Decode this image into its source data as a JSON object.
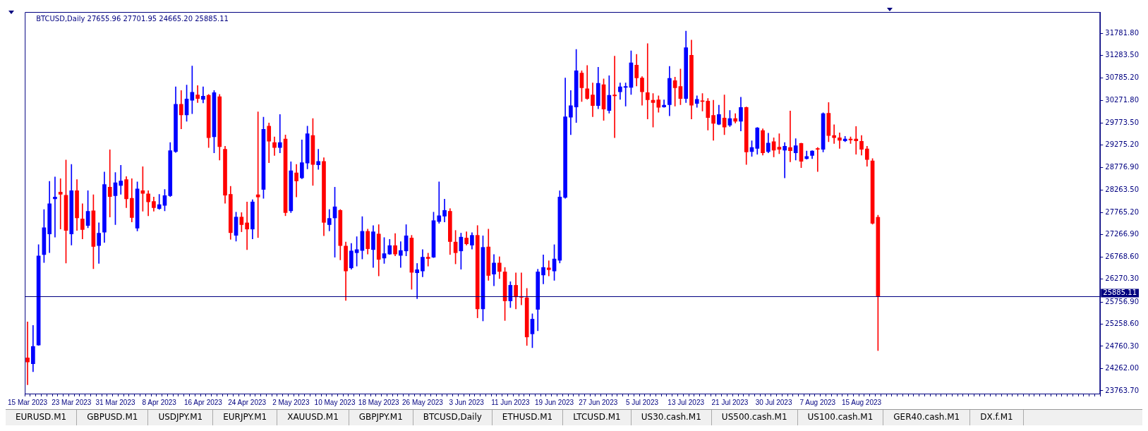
{
  "chart_data": {
    "type": "candlestick",
    "title": "BTCUSD,Daily 27655.96 27701.95 24665.20 25885.11",
    "categories": [
      "15 Mar 2023",
      null,
      null,
      null,
      null,
      null,
      null,
      null,
      "23 Mar 2023",
      null,
      null,
      null,
      null,
      null,
      null,
      null,
      "31 Mar 2023",
      null,
      null,
      null,
      null,
      null,
      null,
      null,
      "8 Apr 2023",
      null,
      null,
      null,
      null,
      null,
      null,
      null,
      "16 Apr 2023",
      null,
      null,
      null,
      null,
      null,
      null,
      null,
      "24 Apr 2023",
      null,
      null,
      null,
      null,
      null,
      null,
      null,
      "2 May 2023",
      null,
      null,
      null,
      null,
      null,
      null,
      null,
      "10 May 2023",
      null,
      null,
      null,
      null,
      null,
      null,
      null,
      "18 May 2023",
      null,
      null,
      null,
      null,
      null,
      null,
      null,
      "26 May 2023",
      null,
      null,
      null,
      null,
      null,
      null,
      null,
      "3 Jun 2023",
      null,
      null,
      null,
      null,
      null,
      null,
      null,
      "11 Jun 2023",
      null,
      null,
      null,
      null,
      null,
      null,
      null,
      "19 Jun 2023",
      null,
      null,
      null,
      null,
      null,
      null,
      null,
      "27 Jun 2023",
      null,
      null,
      null,
      null,
      null,
      null,
      null,
      "5 Jul 2023",
      null,
      null,
      null,
      null,
      null,
      null,
      null,
      "13 Jul 2023",
      null,
      null,
      null,
      null,
      null,
      null,
      null,
      "21 Jul 2023",
      null,
      null,
      null,
      null,
      null,
      null,
      null,
      "30 Jul 2023",
      null,
      null,
      null,
      null,
      null,
      null,
      null,
      "7 Aug 2023",
      null,
      null,
      null,
      null,
      null,
      null,
      null,
      "15 Aug 2023",
      null,
      null,
      null,
      null,
      null,
      null,
      null,
      null,
      null,
      null,
      null,
      null,
      null,
      null,
      null,
      null,
      null,
      null,
      null,
      null,
      null,
      null,
      null,
      null,
      null,
      null,
      null,
      null,
      null,
      null,
      null,
      null,
      null,
      null,
      null,
      null,
      null,
      null,
      null,
      null,
      null,
      null,
      null
    ],
    "ohlc": [
      [
        24500,
        25310,
        23900,
        24410
      ],
      [
        24370,
        25230,
        24190,
        24760
      ],
      [
        24790,
        27040,
        24780,
        26790
      ],
      [
        26820,
        27830,
        26640,
        27420
      ],
      [
        27280,
        28460,
        26860,
        27960
      ],
      [
        28070,
        28560,
        27210,
        28110
      ],
      [
        28220,
        28520,
        27390,
        28170
      ],
      [
        28150,
        28940,
        26630,
        27360
      ],
      [
        27280,
        28840,
        27030,
        28250
      ],
      [
        28250,
        28500,
        27360,
        27640
      ],
      [
        27620,
        27960,
        27170,
        27380
      ],
      [
        27470,
        28250,
        27420,
        27790
      ],
      [
        27800,
        28160,
        26500,
        27000
      ],
      [
        27020,
        27530,
        26620,
        27300
      ],
      [
        27320,
        28670,
        27090,
        28390
      ],
      [
        28330,
        29170,
        27660,
        28120
      ],
      [
        28140,
        28660,
        27490,
        28430
      ],
      [
        28370,
        28820,
        28170,
        28470
      ],
      [
        28500,
        28570,
        27870,
        28070
      ],
      [
        28080,
        28520,
        27550,
        27650
      ],
      [
        27410,
        28450,
        27350,
        28290
      ],
      [
        28250,
        28790,
        27790,
        28190
      ],
      [
        28180,
        28250,
        27690,
        28000
      ],
      [
        28010,
        28110,
        27790,
        27870
      ],
      [
        27850,
        28170,
        27830,
        27940
      ],
      [
        27920,
        28280,
        27800,
        28140
      ],
      [
        28140,
        29330,
        28120,
        29150
      ],
      [
        29130,
        30580,
        29110,
        30190
      ],
      [
        30190,
        30500,
        29640,
        29950
      ],
      [
        29950,
        30620,
        29810,
        30310
      ],
      [
        30280,
        31050,
        29980,
        30460
      ],
      [
        30400,
        30610,
        30230,
        30320
      ],
      [
        30300,
        30580,
        30220,
        30370
      ],
      [
        30390,
        30410,
        29220,
        29440
      ],
      [
        29460,
        30500,
        29100,
        30450
      ],
      [
        30360,
        30410,
        28940,
        29240
      ],
      [
        29180,
        29250,
        27970,
        28150
      ],
      [
        28170,
        28350,
        27160,
        27310
      ],
      [
        27250,
        27770,
        27120,
        27660
      ],
      [
        27660,
        27760,
        27330,
        27490
      ],
      [
        27530,
        28000,
        26930,
        27390
      ],
      [
        27390,
        28050,
        27170,
        28000
      ],
      [
        28160,
        30020,
        27200,
        28110
      ],
      [
        28280,
        29900,
        28080,
        29630
      ],
      [
        29700,
        29770,
        28880,
        29360
      ],
      [
        29330,
        29460,
        29040,
        29220
      ],
      [
        29220,
        29960,
        29100,
        29330
      ],
      [
        29410,
        29500,
        27690,
        27760
      ],
      [
        27800,
        28900,
        27760,
        28700
      ],
      [
        28650,
        28840,
        28110,
        28470
      ],
      [
        28540,
        29390,
        28520,
        28880
      ],
      [
        28870,
        29700,
        28740,
        29530
      ],
      [
        29490,
        29870,
        28370,
        28840
      ],
      [
        28830,
        29180,
        28730,
        28910
      ],
      [
        28910,
        28990,
        27240,
        27540
      ],
      [
        27490,
        27830,
        27350,
        27630
      ],
      [
        27640,
        28330,
        26760,
        27890
      ],
      [
        27810,
        27830,
        26700,
        27020
      ],
      [
        27010,
        27100,
        25790,
        26450
      ],
      [
        26520,
        27070,
        26490,
        26900
      ],
      [
        26860,
        27220,
        26560,
        26930
      ],
      [
        26910,
        27670,
        26720,
        27340
      ],
      [
        27340,
        27390,
        26830,
        26950
      ],
      [
        26930,
        27470,
        26530,
        27330
      ],
      [
        27280,
        27490,
        26340,
        26710
      ],
      [
        26740,
        27200,
        26620,
        26840
      ],
      [
        26830,
        27160,
        26820,
        27020
      ],
      [
        27020,
        27290,
        26790,
        26830
      ],
      [
        26800,
        27110,
        26530,
        26910
      ],
      [
        26900,
        27490,
        26790,
        27240
      ],
      [
        27190,
        27250,
        26040,
        26420
      ],
      [
        26410,
        26620,
        25830,
        26480
      ],
      [
        26450,
        26930,
        26320,
        26760
      ],
      [
        26760,
        26850,
        26560,
        26730
      ],
      [
        26760,
        27770,
        26750,
        27580
      ],
      [
        27560,
        28450,
        27520,
        27690
      ],
      [
        27680,
        28060,
        27550,
        27810
      ],
      [
        27790,
        27850,
        26820,
        27110
      ],
      [
        27100,
        27360,
        26610,
        26860
      ],
      [
        26900,
        27300,
        26490,
        27210
      ],
      [
        27190,
        27330,
        27030,
        27060
      ],
      [
        27030,
        27310,
        26940,
        27250
      ],
      [
        27250,
        27470,
        25400,
        25600
      ],
      [
        25600,
        27240,
        25330,
        26980
      ],
      [
        26990,
        27390,
        26240,
        26350
      ],
      [
        26380,
        26820,
        26120,
        26630
      ],
      [
        26630,
        26770,
        26280,
        26440
      ],
      [
        26430,
        26530,
        25340,
        25780
      ],
      [
        25780,
        26210,
        25630,
        26130
      ],
      [
        26130,
        26410,
        25600,
        25870
      ],
      [
        25880,
        26410,
        25690,
        25860
      ],
      [
        25850,
        26060,
        24780,
        24970
      ],
      [
        25040,
        25490,
        24730,
        25370
      ],
      [
        25590,
        26490,
        25110,
        26430
      ],
      [
        26360,
        26810,
        26160,
        26530
      ],
      [
        26520,
        26680,
        26340,
        26480
      ],
      [
        26450,
        27040,
        26240,
        26720
      ],
      [
        26690,
        28250,
        26630,
        28110
      ],
      [
        28100,
        30780,
        28080,
        29910
      ],
      [
        29900,
        30500,
        29510,
        30160
      ],
      [
        30130,
        31420,
        29780,
        30940
      ],
      [
        30890,
        30940,
        30250,
        30560
      ],
      [
        30540,
        31060,
        30300,
        30320
      ],
      [
        30400,
        30670,
        29910,
        30160
      ],
      [
        30160,
        31020,
        30090,
        30660
      ],
      [
        30630,
        30760,
        29830,
        30080
      ],
      [
        30050,
        30830,
        29990,
        30390
      ],
      [
        30400,
        31270,
        29440,
        30380
      ],
      [
        30470,
        30670,
        30300,
        30580
      ],
      [
        30570,
        30670,
        30150,
        30590
      ],
      [
        30570,
        31390,
        30410,
        31120
      ],
      [
        31070,
        31310,
        30600,
        30780
      ],
      [
        30780,
        30810,
        30170,
        30470
      ],
      [
        30450,
        31550,
        29860,
        30290
      ],
      [
        30280,
        30430,
        29680,
        30230
      ],
      [
        30290,
        30380,
        30010,
        30120
      ],
      [
        30130,
        30290,
        30120,
        30170
      ],
      [
        30180,
        31040,
        29930,
        30770
      ],
      [
        30720,
        30800,
        30150,
        30560
      ],
      [
        30590,
        30980,
        30180,
        30320
      ],
      [
        30320,
        31830,
        30230,
        31460
      ],
      [
        31290,
        31630,
        29860,
        30170
      ],
      [
        30210,
        30380,
        30120,
        30300
      ],
      [
        30270,
        30430,
        30040,
        30250
      ],
      [
        30260,
        30320,
        29610,
        29890
      ],
      [
        29940,
        30280,
        29380,
        29760
      ],
      [
        29740,
        30170,
        29730,
        29960
      ],
      [
        29880,
        30400,
        29510,
        29680
      ],
      [
        29720,
        30050,
        29690,
        29870
      ],
      [
        29870,
        29980,
        29770,
        29810
      ],
      [
        29810,
        30350,
        29590,
        30120
      ],
      [
        30120,
        30130,
        28840,
        29120
      ],
      [
        29130,
        29370,
        29020,
        29220
      ],
      [
        29200,
        29670,
        29070,
        29660
      ],
      [
        29600,
        29640,
        29050,
        29100
      ],
      [
        29130,
        29540,
        29100,
        29320
      ],
      [
        29350,
        29440,
        29010,
        29160
      ],
      [
        29230,
        29530,
        29080,
        29180
      ],
      [
        29160,
        29330,
        28540,
        29250
      ],
      [
        29220,
        30040,
        28900,
        29150
      ],
      [
        29100,
        29420,
        28940,
        29260
      ],
      [
        29310,
        29320,
        28770,
        28910
      ],
      [
        28970,
        29140,
        28960,
        29020
      ],
      [
        29040,
        29150,
        28970,
        29140
      ],
      [
        29190,
        29220,
        28680,
        29180
      ],
      [
        29180,
        30000,
        29120,
        29980
      ],
      [
        29990,
        30230,
        29350,
        29490
      ],
      [
        29490,
        29730,
        29310,
        29440
      ],
      [
        29440,
        29550,
        29200,
        29380
      ],
      [
        29370,
        29470,
        29350,
        29410
      ],
      [
        29410,
        29460,
        29310,
        29390
      ],
      [
        29410,
        29690,
        29070,
        29370
      ],
      [
        29360,
        29490,
        29050,
        29180
      ],
      [
        29190,
        29250,
        28800,
        28950
      ],
      [
        28920,
        28970,
        27500,
        27520
      ],
      [
        27655.96,
        27701.95,
        24665.2,
        25885.11
      ],
      null,
      null,
      null,
      null,
      null,
      null,
      null,
      null,
      null,
      null,
      null,
      null,
      null,
      null,
      null,
      null,
      null,
      null,
      null,
      null,
      null,
      null,
      null,
      null,
      null,
      null,
      null,
      null,
      null,
      null,
      null,
      null,
      null,
      null,
      null,
      null,
      null,
      null,
      null,
      null
    ],
    "colors": [
      "#ff0000",
      "#0000ff",
      "#0000ff",
      "#0000ff",
      "#0000ff",
      "#0000ff",
      "#ff0000",
      "#ff0000",
      "#0000ff",
      "#ff0000",
      "#ff0000",
      "#0000ff",
      "#ff0000",
      "#0000ff",
      "#0000ff",
      "#ff0000",
      "#0000ff",
      "#0000ff",
      "#ff0000",
      "#ff0000",
      "#0000ff",
      "#ff0000",
      "#ff0000",
      "#ff0000",
      "#0000ff",
      "#0000ff",
      "#0000ff",
      "#0000ff",
      "#ff0000",
      "#0000ff",
      "#0000ff",
      "#ff0000",
      "#0000ff",
      "#ff0000",
      "#0000ff",
      "#ff0000",
      "#ff0000",
      "#ff0000",
      "#0000ff",
      "#ff0000",
      "#ff0000",
      "#0000ff",
      "#ff0000",
      "#0000ff",
      "#ff0000",
      "#ff0000",
      "#0000ff",
      "#ff0000",
      "#0000ff",
      "#ff0000",
      "#0000ff",
      "#0000ff",
      "#ff0000",
      "#0000ff",
      "#ff0000",
      "#0000ff",
      "#0000ff",
      "#ff0000",
      "#ff0000",
      "#0000ff",
      "#0000ff",
      "#0000ff",
      "#ff0000",
      "#0000ff",
      "#ff0000",
      "#0000ff",
      "#0000ff",
      "#ff0000",
      "#0000ff",
      "#0000ff",
      "#ff0000",
      "#0000ff",
      "#0000ff",
      "#ff0000",
      "#0000ff",
      "#0000ff",
      "#0000ff",
      "#ff0000",
      "#ff0000",
      "#0000ff",
      "#ff0000",
      "#0000ff",
      "#ff0000",
      "#0000ff",
      "#ff0000",
      "#0000ff",
      "#ff0000",
      "#ff0000",
      "#0000ff",
      "#ff0000",
      "#ff0000",
      "#ff0000",
      "#0000ff",
      "#0000ff",
      "#0000ff",
      "#ff0000",
      "#0000ff",
      "#0000ff",
      "#0000ff",
      "#0000ff",
      "#0000ff",
      "#ff0000",
      "#ff0000",
      "#ff0000",
      "#0000ff",
      "#ff0000",
      "#0000ff",
      "#ff0000",
      "#0000ff",
      "#0000ff",
      "#0000ff",
      "#ff0000",
      "#ff0000",
      "#ff0000",
      "#ff0000",
      "#ff0000",
      "#0000ff",
      "#0000ff",
      "#ff0000",
      "#ff0000",
      "#0000ff",
      "#ff0000",
      "#0000ff",
      "#ff0000",
      "#ff0000",
      "#ff0000",
      "#0000ff",
      "#ff0000",
      "#0000ff",
      "#ff0000",
      "#0000ff",
      "#ff0000",
      "#0000ff",
      "#0000ff",
      "#ff0000",
      "#0000ff",
      "#ff0000",
      "#ff0000",
      "#0000ff",
      "#ff0000",
      "#0000ff",
      "#ff0000",
      "#0000ff",
      "#0000ff",
      "#ff0000",
      "#0000ff",
      "#ff0000",
      "#ff0000",
      "#ff0000",
      "#0000ff",
      "#ff0000",
      "#ff0000",
      "#ff0000",
      "#ff0000",
      "#ff0000",
      "#ff0000",
      null,
      null,
      null,
      null,
      null,
      null,
      null,
      null,
      null,
      null,
      null,
      null,
      null,
      null,
      null,
      null,
      null,
      null,
      null,
      null,
      null,
      null,
      null,
      null,
      null,
      null,
      null,
      null,
      null,
      null,
      null,
      null,
      null,
      null,
      null,
      null,
      null,
      null,
      null,
      null
    ],
    "ylim": [
      23700,
      32260
    ],
    "yticks": [
      {
        "value": 23763.7,
        "label": "23763.70"
      },
      {
        "value": 24262,
        "label": "24262.00"
      },
      {
        "value": 24760.3,
        "label": "24760.30"
      },
      {
        "value": 25258.6,
        "label": "25258.60"
      },
      {
        "value": 25756.9,
        "label": "25756.90"
      },
      {
        "value": 26270.3,
        "label": "26270.30"
      },
      {
        "value": 26768.6,
        "label": "26768.60"
      },
      {
        "value": 27266.9,
        "label": "27266.90"
      },
      {
        "value": 27765.2,
        "label": "27765.20"
      },
      {
        "value": 28263.5,
        "label": "28263.50"
      },
      {
        "value": 28776.9,
        "label": "28776.90"
      },
      {
        "value": 29275.2,
        "label": "29275.20"
      },
      {
        "value": 29773.5,
        "label": "29773.50"
      },
      {
        "value": 30271.8,
        "label": "30271.80"
      },
      {
        "value": 30785.2,
        "label": "30785.20"
      },
      {
        "value": 31283.5,
        "label": "31283.50"
      },
      {
        "value": 31781.8,
        "label": "31781.80"
      }
    ],
    "ref_lines": [
      {
        "axis": "y",
        "value": 25885.11,
        "label": "25885.11",
        "color": "#000080"
      }
    ],
    "annotations": [
      "EURUSD.M1",
      "GBPUSD.M1",
      "USDJPY.M1",
      "EURJPY.M1",
      "XAUUSD.M1",
      "GBPJPY.M1",
      "BTCUSD,Daily",
      "ETHUSD.M1",
      "LTCUSD.M1",
      "US30.cash.M1",
      "US500.cash.M1",
      "US100.cash.M1",
      "GER40.cash.M1",
      "DX.f.M1"
    ]
  }
}
